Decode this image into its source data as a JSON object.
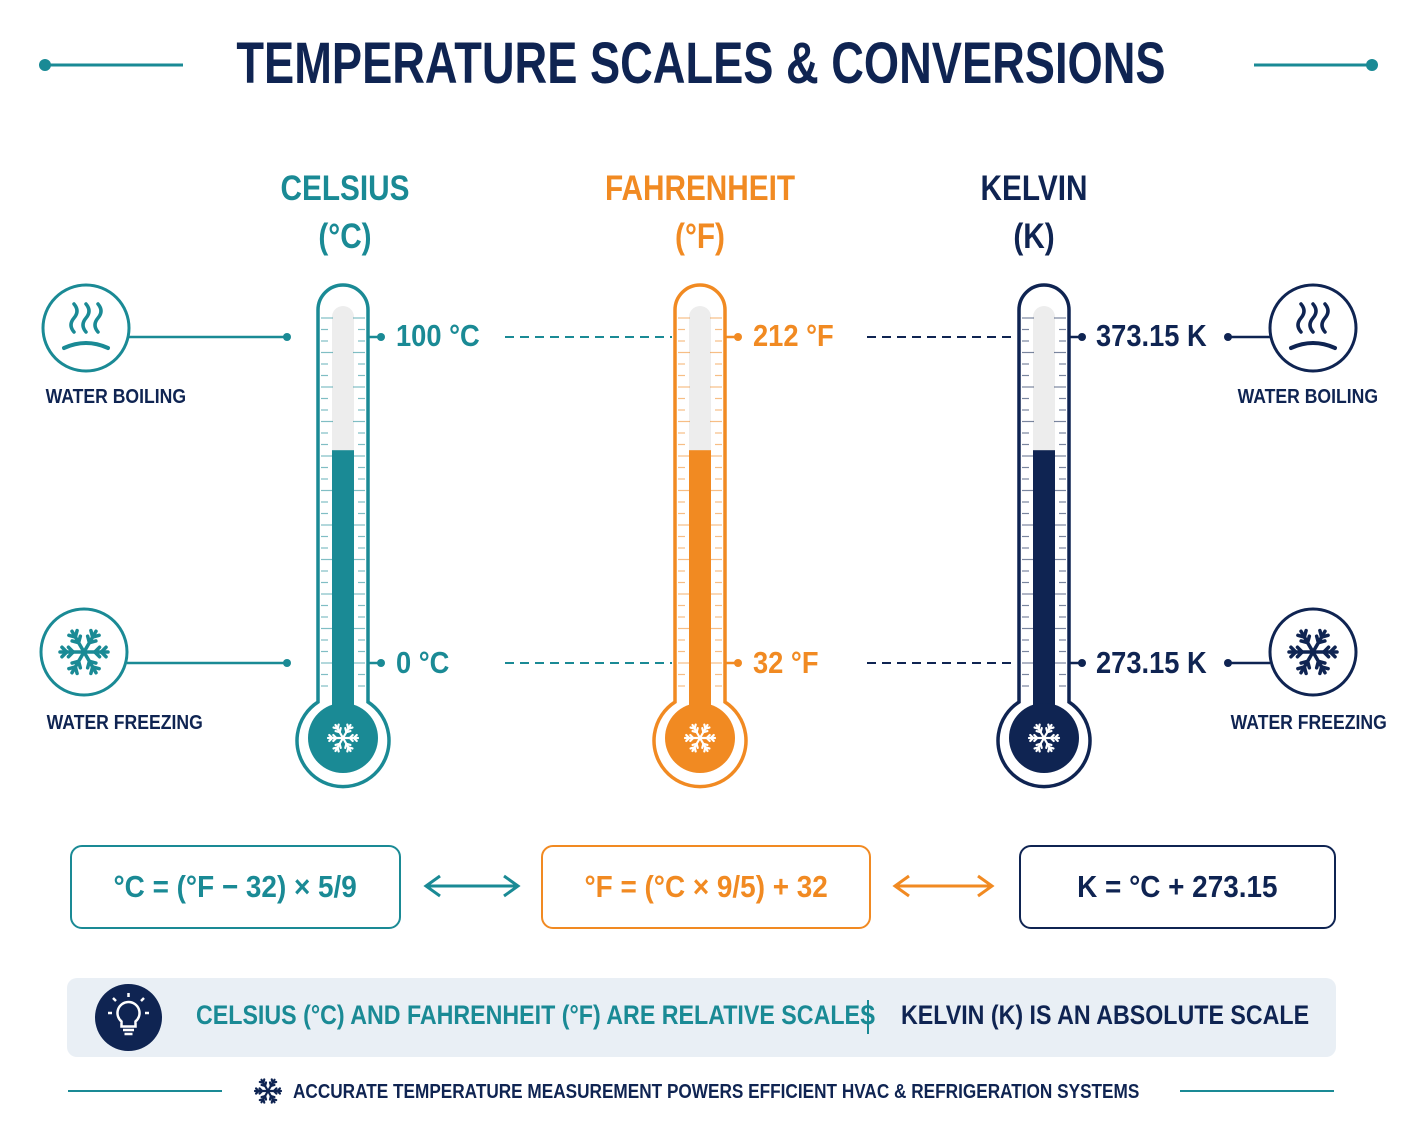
{
  "title": "TEMPERATURE SCALES & CONVERSIONS",
  "colors": {
    "celsius": "#1a8a95",
    "fahrenheit": "#f18a22",
    "kelvin": "#0f2452",
    "note_bg": "#e9eff5"
  },
  "scales": [
    {
      "name": "CELSIUS",
      "unit": "(°C)",
      "boiling": "100 °C",
      "freezing": "0 °C"
    },
    {
      "name": "FAHRENHEIT",
      "unit": "(°F)",
      "boiling": "212 °F",
      "freezing": "32 °F"
    },
    {
      "name": "KELVIN",
      "unit": "(K)",
      "boiling": "373.15 K",
      "freezing": "273.15 K"
    }
  ],
  "labels": {
    "left_boiling": "WATER BOILING",
    "left_freezing": "WATER FREEZING",
    "right_boiling": "WATER BOILING",
    "right_freezing": "WATER FREEZING"
  },
  "icons": {
    "boiling": "steam-icon",
    "freezing": "snowflake-icon",
    "bulb": "lightbulb-icon",
    "arrows": "double-arrow-icon"
  },
  "formulas": [
    "°C = (°F − 32) × 5/9",
    "°F = (°C × 9/5) + 32",
    "K = °C + 273.15"
  ],
  "note": {
    "left": "CELSIUS (°C) AND FAHRENHEIT (°F) ARE RELATIVE SCALES",
    "right": "KELVIN (K) IS AN ABSOLUTE SCALE"
  },
  "footer": "ACCURATE TEMPERATURE MEASUREMENT POWERS EFFICIENT HVAC & REFRIGERATION SYSTEMS",
  "thermometer_fill_fraction": 0.65
}
